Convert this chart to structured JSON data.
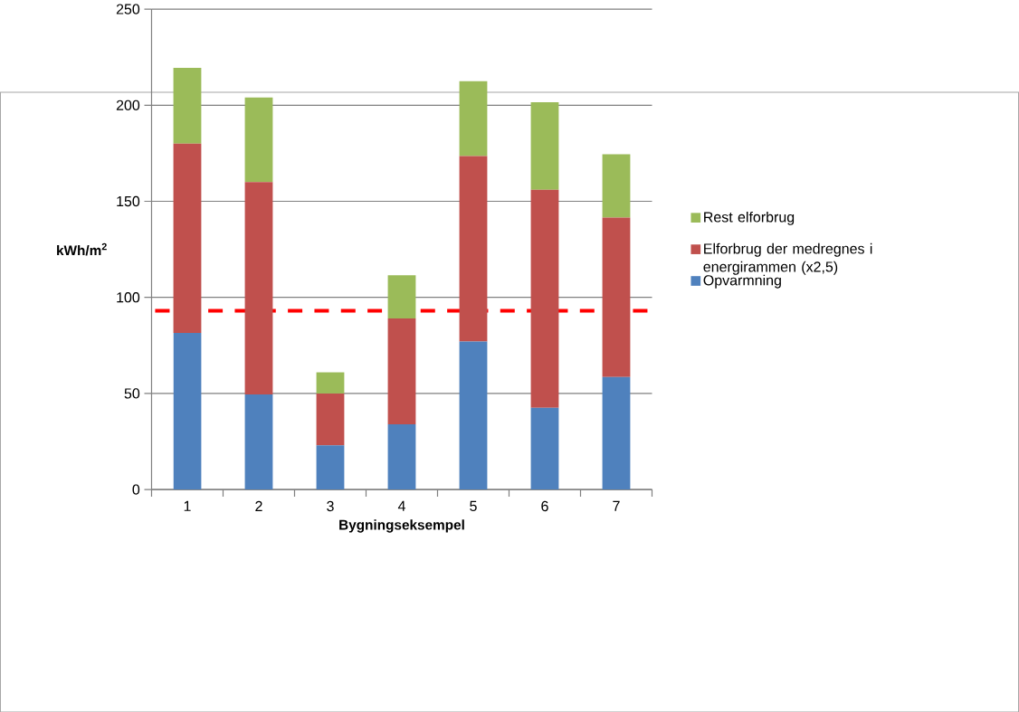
{
  "chart_data": {
    "type": "bar",
    "stacked": true,
    "categories": [
      "1",
      "2",
      "3",
      "4",
      "5",
      "6",
      "7"
    ],
    "series": [
      {
        "name": "Opvarmning",
        "color": "#4f81bd",
        "values": [
          81.5,
          49.5,
          23,
          34,
          77,
          42.5,
          58.5
        ]
      },
      {
        "name": "Elforbrug der medregnes i energirammen (x2,5)",
        "color": "#c0504d",
        "values": [
          98.5,
          110.5,
          27,
          55,
          96.5,
          113.5,
          83
        ]
      },
      {
        "name": "Rest elforbrug",
        "color": "#9bbb59",
        "values": [
          39.5,
          44,
          11,
          22.5,
          39,
          45.5,
          33
        ]
      }
    ],
    "xlabel": "Bygningseksempel",
    "ylabel": "**kWh/m$^{2}$**",
    "ylim": [
      0,
      250
    ],
    "yticks": [
      0,
      50,
      100,
      150,
      200,
      250
    ],
    "grid": "y",
    "legend": "right",
    "ref_lines": [
      {
        "axis": "y",
        "value": 93,
        "color": "#ff0000",
        "line_style": "dashed"
      }
    ]
  }
}
